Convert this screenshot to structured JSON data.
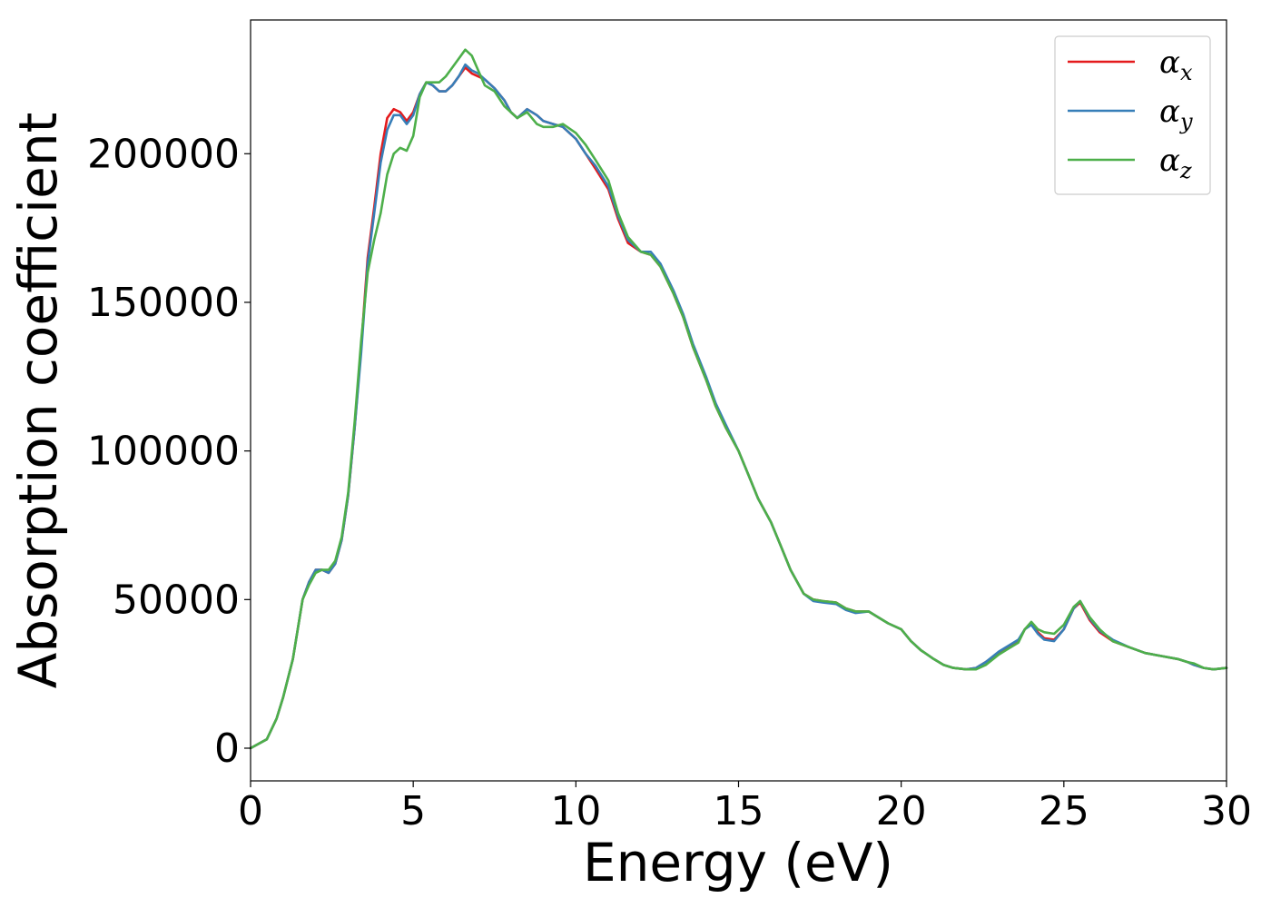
{
  "chart_data": {
    "type": "line",
    "title": "",
    "xlabel": "Energy (eV)",
    "ylabel": "Absorption coefficient",
    "xlim": [
      0,
      30
    ],
    "ylim": [
      -11000,
      245000
    ],
    "xticks": [
      0,
      5,
      10,
      15,
      20,
      25,
      30
    ],
    "xtick_labels": [
      "0",
      "5",
      "10",
      "15",
      "20",
      "25",
      "30"
    ],
    "yticks": [
      0,
      50000,
      100000,
      150000,
      200000
    ],
    "ytick_labels": [
      "0",
      "50000",
      "100000",
      "150000",
      "200000"
    ],
    "grid": false,
    "legend_position": "top-right",
    "series": [
      {
        "name": "α",
        "sub": "x",
        "color": "#e41a1c",
        "x": [
          0,
          0.5,
          0.8,
          1.0,
          1.3,
          1.6,
          1.8,
          2.0,
          2.2,
          2.4,
          2.6,
          2.8,
          3.0,
          3.2,
          3.4,
          3.6,
          3.8,
          4.0,
          4.2,
          4.4,
          4.6,
          4.8,
          5.0,
          5.2,
          5.4,
          5.6,
          5.8,
          6.0,
          6.2,
          6.4,
          6.6,
          6.8,
          7.0,
          7.2,
          7.5,
          7.8,
          8.0,
          8.2,
          8.5,
          8.8,
          9.0,
          9.3,
          9.6,
          10.0,
          10.3,
          10.6,
          11.0,
          11.3,
          11.6,
          12.0,
          12.3,
          12.6,
          13.0,
          13.3,
          13.6,
          14.0,
          14.3,
          14.6,
          15.0,
          15.3,
          15.6,
          16.0,
          16.3,
          16.6,
          17.0,
          17.3,
          17.6,
          18.0,
          18.3,
          18.6,
          19.0,
          19.3,
          19.6,
          20.0,
          20.3,
          20.6,
          21.0,
          21.3,
          21.6,
          22.0,
          22.3,
          22.6,
          23.0,
          23.3,
          23.6,
          23.8,
          24.0,
          24.2,
          24.4,
          24.7,
          25.0,
          25.3,
          25.5,
          25.8,
          26.1,
          26.5,
          27.0,
          27.5,
          28.0,
          28.5,
          28.8,
          29.0,
          29.3,
          29.6,
          30.0
        ],
        "y": [
          0,
          3000,
          10000,
          17000,
          30000,
          50000,
          56000,
          60000,
          60000,
          59000,
          62000,
          70000,
          85000,
          108000,
          135000,
          165000,
          182000,
          200000,
          212000,
          215000,
          214000,
          211000,
          214000,
          220000,
          224000,
          223000,
          221000,
          221000,
          223000,
          226000,
          229000,
          227000,
          226000,
          225000,
          222000,
          218000,
          214000,
          212000,
          215000,
          213000,
          211000,
          210000,
          209000,
          205000,
          200000,
          195000,
          188000,
          178000,
          170000,
          167000,
          166000,
          162000,
          153000,
          145000,
          135000,
          124000,
          115000,
          108000,
          100000,
          92000,
          84000,
          76000,
          68000,
          60000,
          52000,
          50000,
          49500,
          49000,
          47000,
          46000,
          46000,
          44000,
          42000,
          40000,
          36000,
          33000,
          30000,
          28000,
          27000,
          26500,
          27000,
          29000,
          32000,
          34000,
          36000,
          40000,
          42000,
          39000,
          37000,
          36500,
          40000,
          47000,
          49000,
          43000,
          39000,
          36000,
          34000,
          32000,
          31000,
          30000,
          29000,
          28000,
          27000,
          26500,
          27000
        ]
      },
      {
        "name": "α",
        "sub": "y",
        "color": "#377eb8",
        "x": [
          0,
          0.5,
          0.8,
          1.0,
          1.3,
          1.6,
          1.8,
          2.0,
          2.2,
          2.4,
          2.6,
          2.8,
          3.0,
          3.2,
          3.4,
          3.6,
          3.8,
          4.0,
          4.2,
          4.4,
          4.6,
          4.8,
          5.0,
          5.2,
          5.4,
          5.6,
          5.8,
          6.0,
          6.2,
          6.4,
          6.6,
          6.8,
          7.0,
          7.2,
          7.5,
          7.8,
          8.0,
          8.2,
          8.5,
          8.8,
          9.0,
          9.3,
          9.6,
          10.0,
          10.3,
          10.6,
          11.0,
          11.3,
          11.6,
          12.0,
          12.3,
          12.6,
          13.0,
          13.3,
          13.6,
          14.0,
          14.3,
          14.6,
          15.0,
          15.3,
          15.6,
          16.0,
          16.3,
          16.6,
          17.0,
          17.3,
          17.6,
          18.0,
          18.3,
          18.6,
          19.0,
          19.3,
          19.6,
          20.0,
          20.3,
          20.6,
          21.0,
          21.3,
          21.6,
          22.0,
          22.3,
          22.6,
          23.0,
          23.3,
          23.6,
          23.8,
          24.0,
          24.2,
          24.4,
          24.7,
          25.0,
          25.3,
          25.5,
          25.8,
          26.1,
          26.5,
          27.0,
          27.5,
          28.0,
          28.5,
          28.8,
          29.0,
          29.3,
          29.6,
          30.0
        ],
        "y": [
          0,
          3000,
          10000,
          17000,
          30000,
          50000,
          56000,
          60000,
          60000,
          59000,
          62000,
          70000,
          85000,
          108000,
          133000,
          163000,
          180000,
          197000,
          208000,
          213000,
          213000,
          210000,
          213000,
          220000,
          224000,
          223000,
          221000,
          221000,
          223000,
          226000,
          230000,
          228000,
          227000,
          225000,
          222000,
          218000,
          214000,
          212000,
          215000,
          213000,
          211000,
          210000,
          209000,
          205000,
          200000,
          196000,
          189000,
          179000,
          171000,
          167000,
          167000,
          163000,
          154000,
          146000,
          136000,
          125000,
          116000,
          109000,
          100000,
          92000,
          84000,
          76000,
          68000,
          60000,
          52000,
          49500,
          49000,
          48500,
          46500,
          45500,
          46000,
          44000,
          42000,
          40000,
          36000,
          33000,
          30000,
          28000,
          27000,
          26500,
          27000,
          29000,
          32500,
          34500,
          36500,
          40000,
          41500,
          38500,
          36500,
          36000,
          40000,
          47000,
          49500,
          43500,
          39500,
          36500,
          34000,
          32000,
          31000,
          30000,
          29000,
          28000,
          27000,
          26500,
          27000
        ]
      },
      {
        "name": "α",
        "sub": "z",
        "color": "#4daf4a",
        "x": [
          0,
          0.5,
          0.8,
          1.0,
          1.3,
          1.6,
          1.8,
          2.0,
          2.2,
          2.4,
          2.6,
          2.8,
          3.0,
          3.2,
          3.4,
          3.6,
          3.8,
          4.0,
          4.2,
          4.4,
          4.6,
          4.8,
          5.0,
          5.2,
          5.4,
          5.6,
          5.8,
          6.0,
          6.2,
          6.4,
          6.6,
          6.8,
          7.0,
          7.2,
          7.5,
          7.8,
          8.0,
          8.2,
          8.5,
          8.8,
          9.0,
          9.3,
          9.6,
          10.0,
          10.3,
          10.6,
          11.0,
          11.3,
          11.6,
          12.0,
          12.3,
          12.6,
          13.0,
          13.3,
          13.6,
          14.0,
          14.3,
          14.6,
          15.0,
          15.3,
          15.6,
          16.0,
          16.3,
          16.6,
          17.0,
          17.3,
          17.6,
          18.0,
          18.3,
          18.6,
          19.0,
          19.3,
          19.6,
          20.0,
          20.3,
          20.6,
          21.0,
          21.3,
          21.6,
          22.0,
          22.3,
          22.6,
          23.0,
          23.3,
          23.6,
          23.8,
          24.0,
          24.2,
          24.4,
          24.7,
          25.0,
          25.3,
          25.5,
          25.8,
          26.1,
          26.5,
          27.0,
          27.5,
          28.0,
          28.5,
          28.8,
          29.0,
          29.3,
          29.6,
          30.0
        ],
        "y": [
          0,
          3000,
          10000,
          17000,
          30000,
          50000,
          55000,
          59000,
          60000,
          60000,
          63000,
          71000,
          86000,
          110000,
          137000,
          160000,
          171000,
          180000,
          193000,
          200000,
          202000,
          201000,
          206000,
          219000,
          224000,
          224000,
          224000,
          226000,
          229000,
          232000,
          235000,
          233000,
          228000,
          223000,
          221000,
          216000,
          214000,
          212000,
          214000,
          210000,
          209000,
          209000,
          210000,
          207000,
          203000,
          198000,
          191000,
          180000,
          172000,
          167000,
          166000,
          162000,
          153000,
          145000,
          135000,
          124000,
          115000,
          108000,
          100000,
          92000,
          84000,
          76000,
          68000,
          60000,
          52000,
          50000,
          49500,
          49000,
          47000,
          46000,
          46000,
          44000,
          42000,
          40000,
          36000,
          33000,
          30000,
          28000,
          27000,
          26500,
          26500,
          28000,
          31500,
          33500,
          35500,
          40000,
          42500,
          40000,
          39000,
          38500,
          41500,
          47500,
          49500,
          44000,
          40000,
          36000,
          34000,
          32000,
          31000,
          30000,
          29000,
          28500,
          27000,
          26500,
          27000
        ]
      }
    ]
  }
}
